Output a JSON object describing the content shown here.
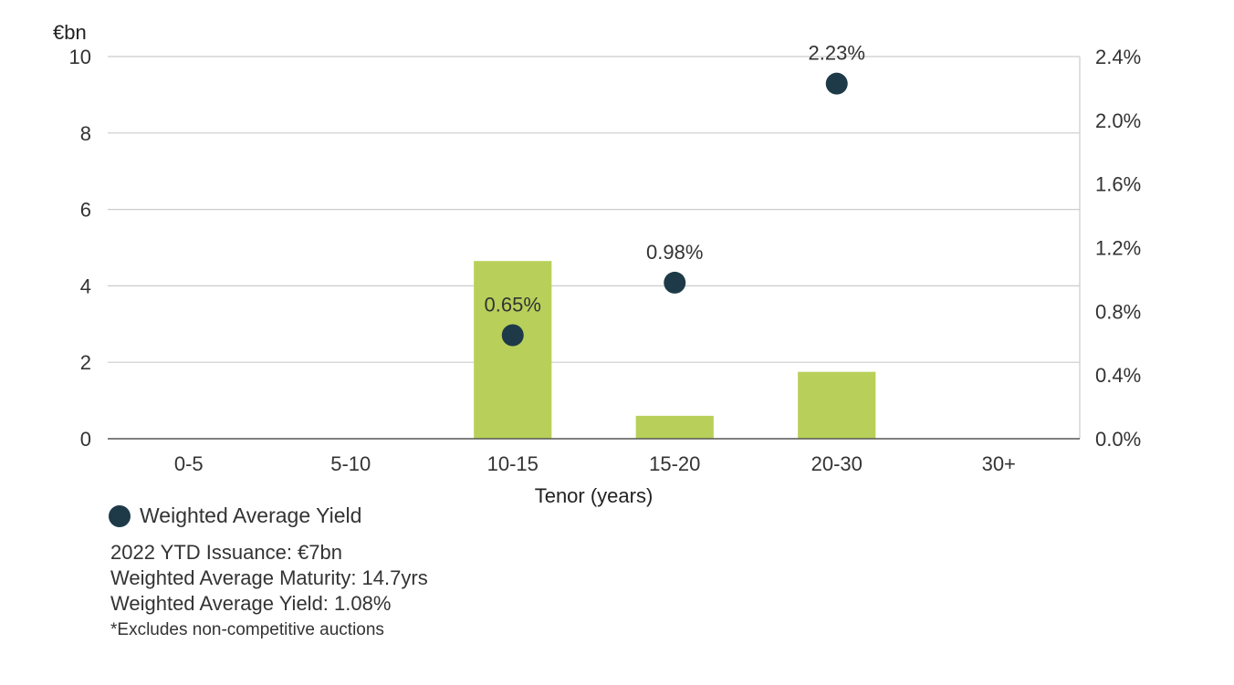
{
  "chart_data": {
    "type": "bar",
    "categories": [
      "0-5",
      "5-10",
      "10-15",
      "15-20",
      "20-30",
      "30+"
    ],
    "series": [
      {
        "name": "",
        "type": "bar",
        "axis": "left",
        "values": [
          0,
          0,
          4.65,
          0.6,
          1.75,
          0
        ]
      },
      {
        "name": "Weighted Average Yield",
        "type": "scatter",
        "axis": "right",
        "values": [
          null,
          null,
          0.65,
          0.98,
          2.23,
          null
        ],
        "labels": [
          null,
          null,
          "0.65%",
          "0.98%",
          "2.23%",
          null
        ]
      }
    ],
    "ylabel": "€bn",
    "xlabel": "Tenor (years)",
    "ylim": [
      0,
      10
    ],
    "yticks": [
      "0",
      "2",
      "4",
      "6",
      "8",
      "10"
    ],
    "y2lim": [
      0,
      2.4
    ],
    "y2ticks": [
      "0.0%",
      "0.4%",
      "0.8%",
      "1.2%",
      "1.6%",
      "2.0%",
      "2.4%"
    ],
    "grid": true,
    "legend_position": "bottom-left",
    "colors": {
      "bar": "#b8d05a",
      "marker": "#1e3a48",
      "grid": "#cccccc",
      "axis": "#555555"
    }
  },
  "legend": {
    "label": "Weighted Average Yield"
  },
  "notes": {
    "lines": [
      "2022 YTD Issuance: €7bn",
      "Weighted Average Maturity: 14.7yrs",
      "Weighted Average Yield: 1.08%"
    ],
    "footnote": "*Excludes non-competitive auctions"
  }
}
